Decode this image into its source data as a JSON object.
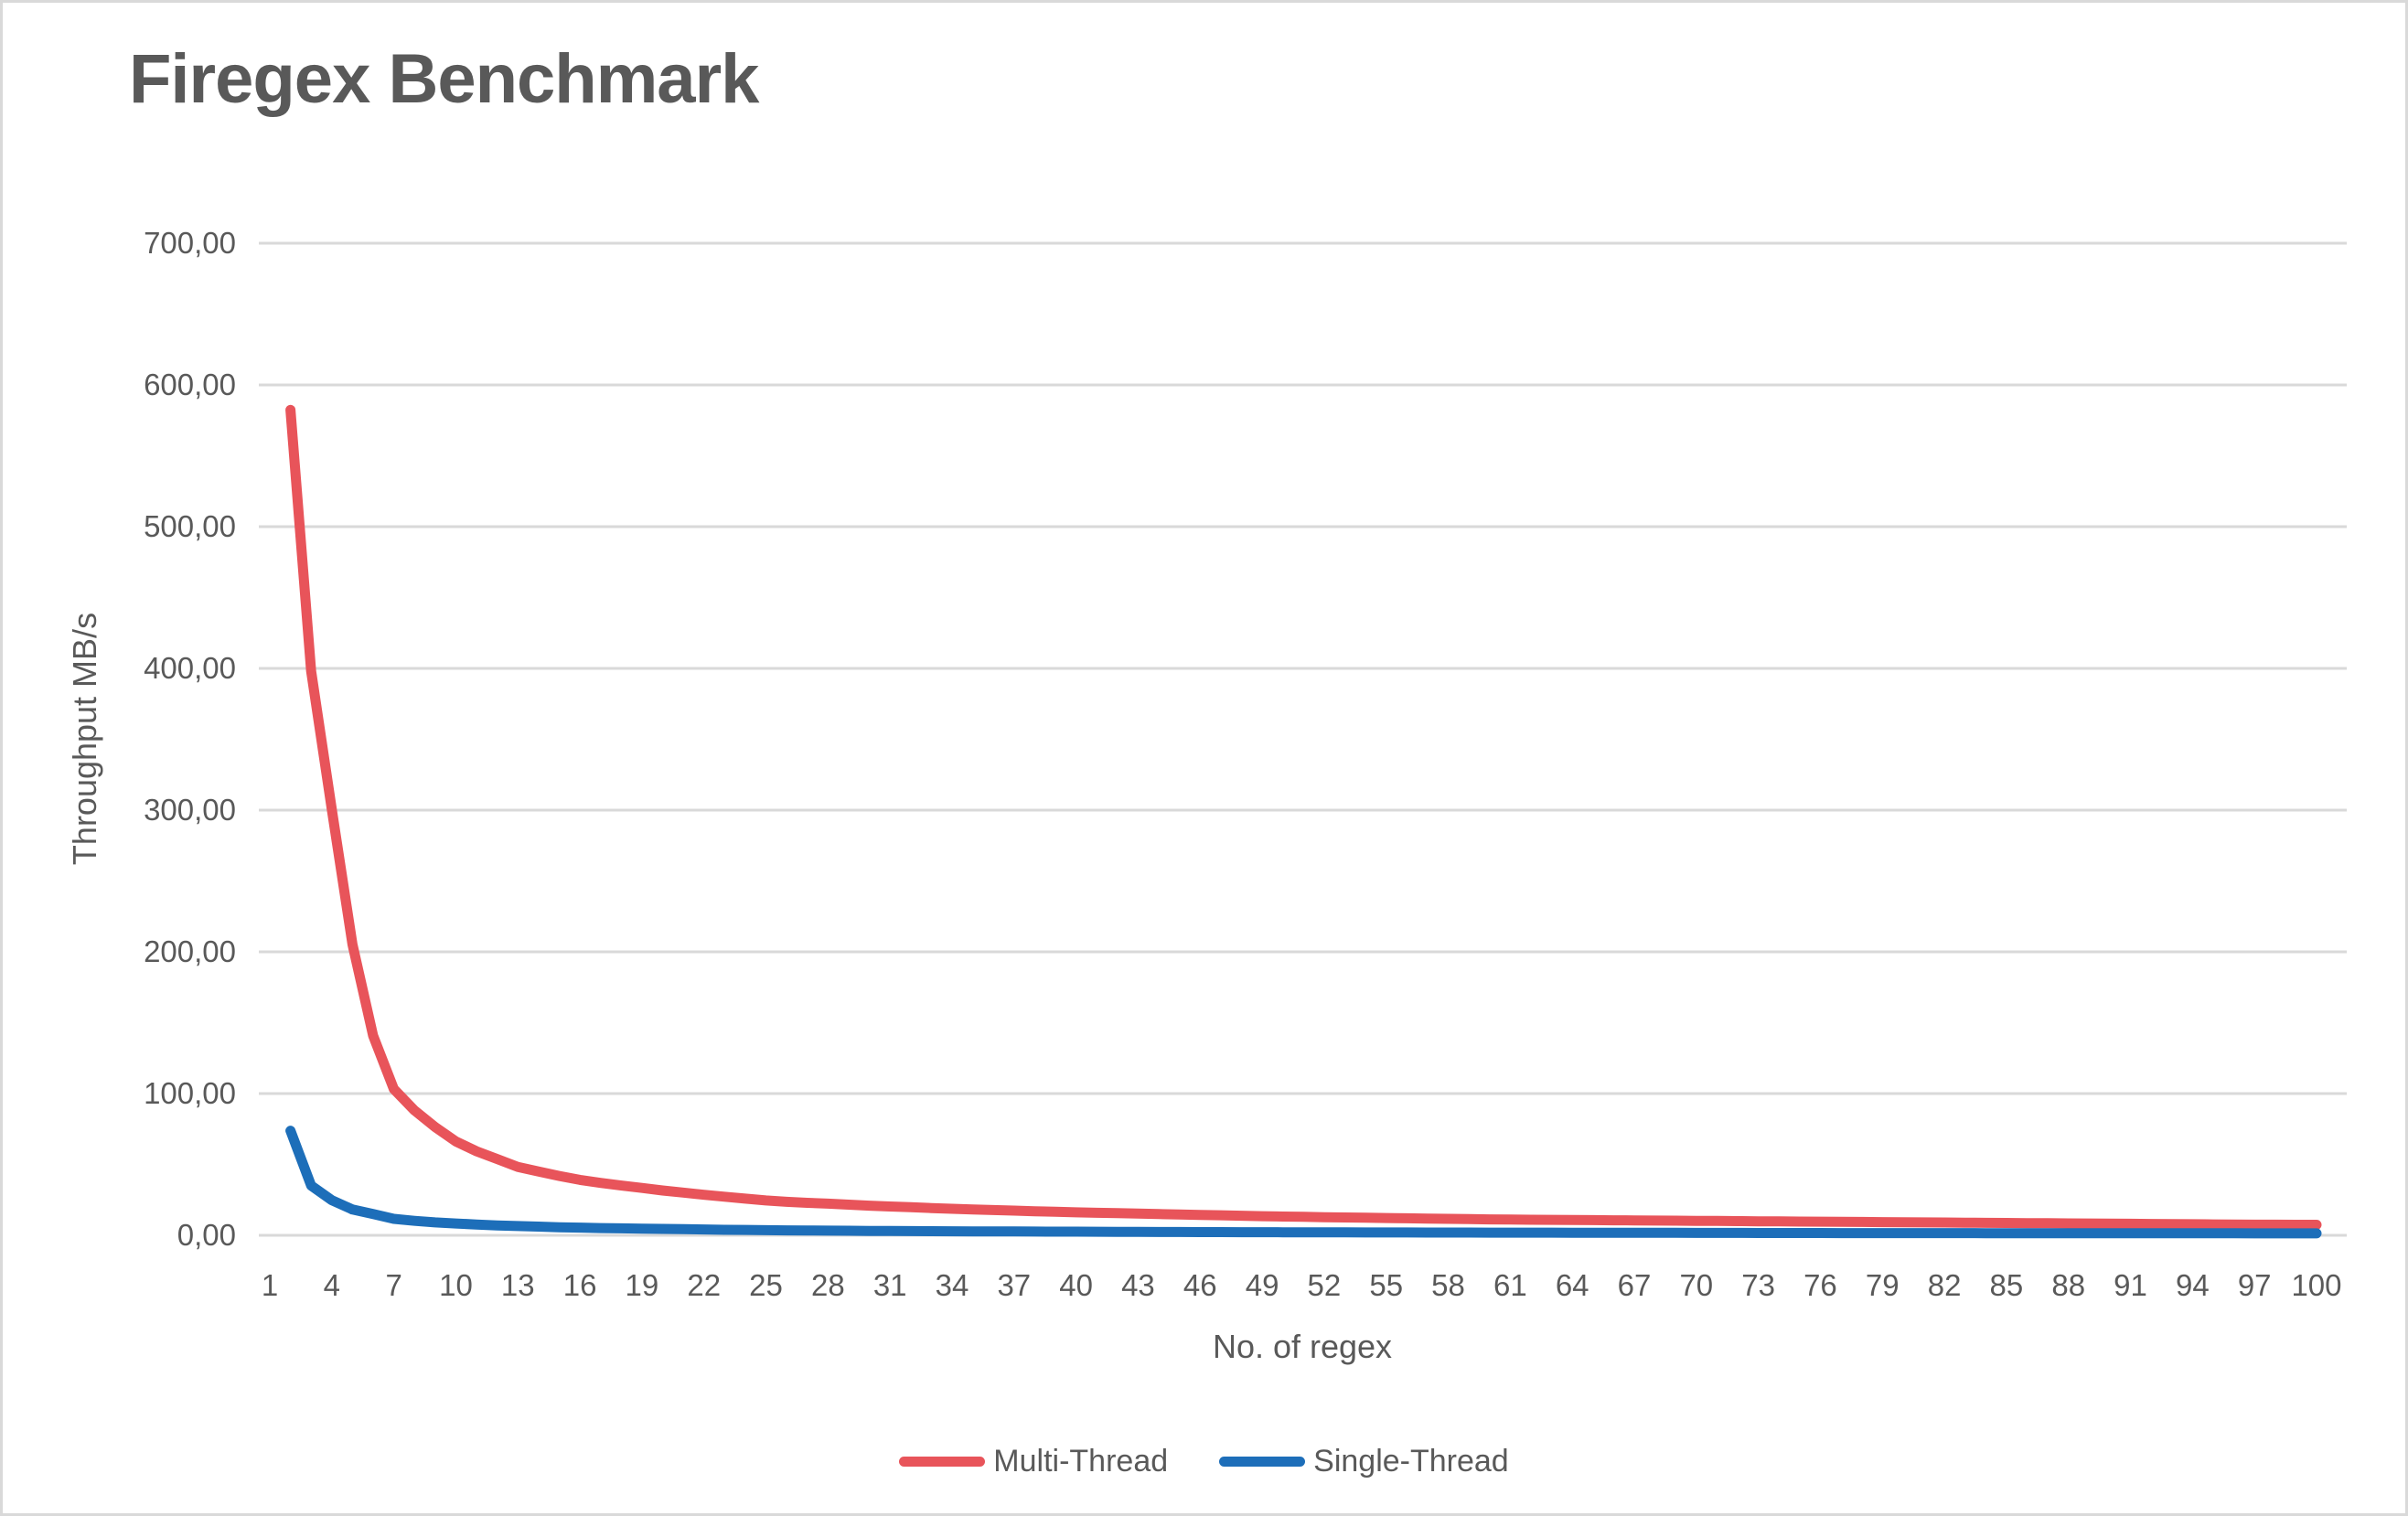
{
  "title": "Firegex Benchmark",
  "colors": {
    "title_text": "#595959",
    "axis_text": "#595959",
    "gridline": "#d9d9d9",
    "border": "#d9d9d9",
    "background": "#ffffff",
    "multi_thread": "#e8545a",
    "single_thread": "#1d6eb9"
  },
  "chart_data": {
    "type": "line",
    "title": "Firegex Benchmark",
    "xlabel": "No. of regex",
    "ylabel": "Throughput MB/s",
    "grid": "horizontal",
    "legend_position": "bottom",
    "number_format": "comma-decimal",
    "ylim": [
      0,
      700
    ],
    "y_tick_values": [
      0,
      100,
      200,
      300,
      400,
      500,
      600,
      700
    ],
    "y_tick_labels": [
      "0,00",
      "100,00",
      "200,00",
      "300,00",
      "400,00",
      "500,00",
      "600,00",
      "700,00"
    ],
    "x_tick_labels": [
      "1",
      "4",
      "7",
      "10",
      "13",
      "16",
      "19",
      "22",
      "25",
      "28",
      "31",
      "34",
      "37",
      "40",
      "43",
      "46",
      "49",
      "52",
      "55",
      "58",
      "61",
      "64",
      "67",
      "70",
      "73",
      "76",
      "79",
      "82",
      "85",
      "88",
      "91",
      "94",
      "97",
      "100"
    ],
    "x": [
      2,
      3,
      4,
      5,
      6,
      7,
      8,
      9,
      10,
      11,
      12,
      13,
      14,
      15,
      16,
      17,
      18,
      19,
      20,
      21,
      22,
      23,
      24,
      25,
      26,
      27,
      28,
      29,
      30,
      31,
      32,
      33,
      34,
      35,
      36,
      37,
      38,
      39,
      40,
      41,
      42,
      43,
      44,
      45,
      46,
      47,
      48,
      49,
      50,
      51,
      52,
      53,
      54,
      55,
      56,
      57,
      58,
      59,
      60,
      61,
      62,
      63,
      64,
      65,
      66,
      67,
      68,
      69,
      70,
      71,
      72,
      73,
      74,
      75,
      76,
      77,
      78,
      79,
      80,
      81,
      82,
      83,
      84,
      85,
      86,
      87,
      88,
      89,
      90,
      91,
      92,
      93,
      94,
      95,
      96,
      97,
      98,
      99,
      100
    ],
    "series": [
      {
        "name": "Multi-Thread",
        "color": "#e8545a",
        "values": [
          582.4,
          398.1,
          300.5,
          205.3,
          140.8,
          103.2,
          88.1,
          76.4,
          66.2,
          59.3,
          53.8,
          48.2,
          45.0,
          41.9,
          39.1,
          37.0,
          35.1,
          33.4,
          31.6,
          30.1,
          28.6,
          27.2,
          25.9,
          24.6,
          23.6,
          22.9,
          22.3,
          21.6,
          20.9,
          20.3,
          19.8,
          19.2,
          18.7,
          18.2,
          17.8,
          17.4,
          17.0,
          16.6,
          16.2,
          15.9,
          15.6,
          15.3,
          15.0,
          14.7,
          14.4,
          14.1,
          13.8,
          13.5,
          13.2,
          13.0,
          12.8,
          12.6,
          12.4,
          12.2,
          12.0,
          11.8,
          11.6,
          11.4,
          11.2,
          11.1,
          11.0,
          10.9,
          10.8,
          10.7,
          10.6,
          10.5,
          10.4,
          10.3,
          10.2,
          10.1,
          10.0,
          9.9,
          9.8,
          9.7,
          9.6,
          9.5,
          9.4,
          9.3,
          9.2,
          9.1,
          9.0,
          8.9,
          8.8,
          8.7,
          8.6,
          8.5,
          8.4,
          8.3,
          8.2,
          8.1,
          8.0,
          7.9,
          7.8,
          7.7,
          7.6,
          7.5,
          7.5,
          7.4,
          7.4
        ]
      },
      {
        "name": "Single-Thread",
        "color": "#1d6eb9",
        "values": [
          73.8,
          35.1,
          24.8,
          18.2,
          15.0,
          11.6,
          10.2,
          9.1,
          8.3,
          7.6,
          7.0,
          6.5,
          6.1,
          5.7,
          5.4,
          5.1,
          4.9,
          4.7,
          4.5,
          4.3,
          4.1,
          3.9,
          3.8,
          3.6,
          3.5,
          3.4,
          3.3,
          3.2,
          3.1,
          3.0,
          2.95,
          2.9,
          2.85,
          2.8,
          2.75,
          2.7,
          2.65,
          2.6,
          2.55,
          2.5,
          2.45,
          2.4,
          2.35,
          2.3,
          2.27,
          2.24,
          2.21,
          2.18,
          2.15,
          2.12,
          2.09,
          2.06,
          2.03,
          2.0,
          1.98,
          1.96,
          1.94,
          1.92,
          1.9,
          1.88,
          1.86,
          1.84,
          1.82,
          1.8,
          1.78,
          1.76,
          1.74,
          1.72,
          1.7,
          1.68,
          1.66,
          1.64,
          1.62,
          1.6,
          1.59,
          1.58,
          1.57,
          1.56,
          1.55,
          1.54,
          1.53,
          1.52,
          1.51,
          1.5,
          1.49,
          1.48,
          1.47,
          1.46,
          1.45,
          1.44,
          1.43,
          1.42,
          1.41,
          1.4,
          1.39,
          1.38,
          1.37,
          1.36,
          1.35
        ]
      }
    ]
  }
}
